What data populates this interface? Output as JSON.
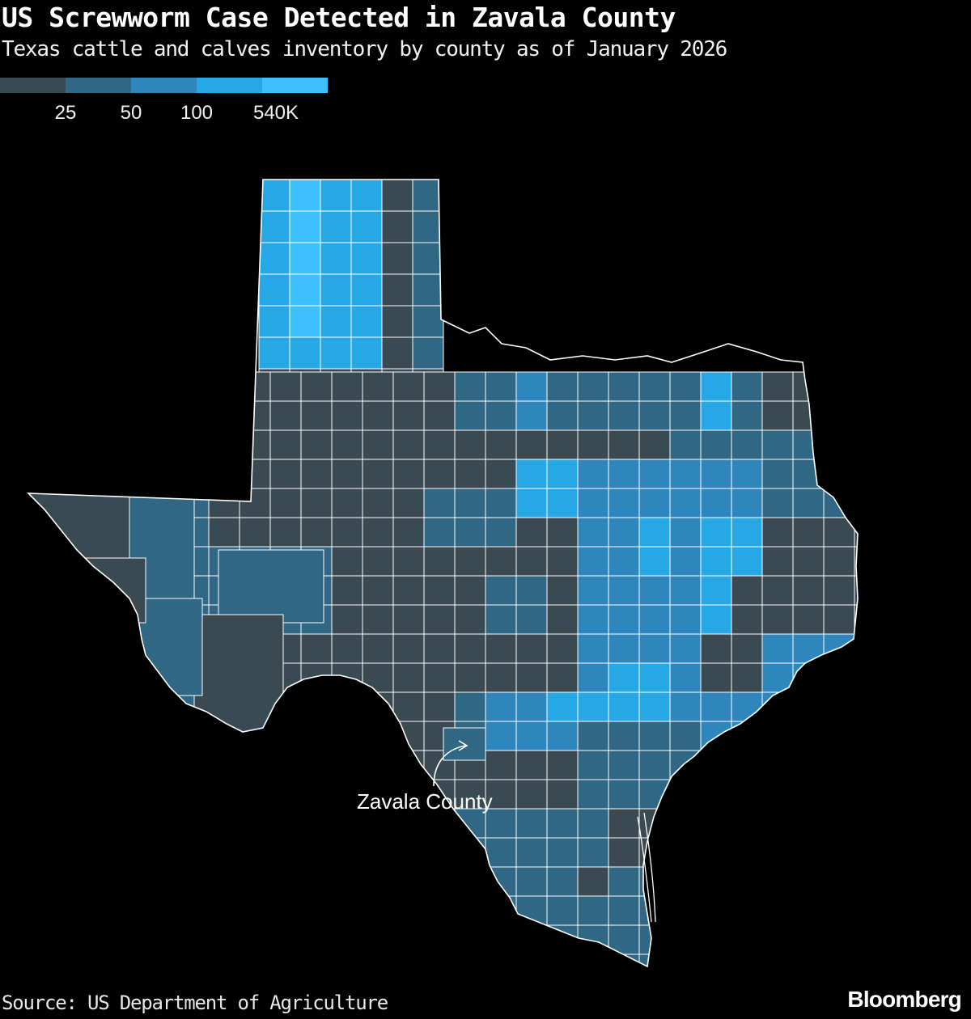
{
  "header": {
    "title": "US Screwworm Case Detected in Zavala County",
    "subtitle": "Texas cattle and calves inventory by county as of January 2026"
  },
  "legend": {
    "colors": [
      "#3a4a52",
      "#2f6784",
      "#2e86bc",
      "#26a8e6",
      "#3ec0ff"
    ],
    "ticks": [
      "25",
      "50",
      "100",
      "540K"
    ]
  },
  "map": {
    "annotation": "Zavala County",
    "highlight_county": "Zavala County",
    "border_color": "#ffffff"
  },
  "footer": {
    "source": "Source: US Department of Agriculture",
    "brand": "Bloomberg"
  }
}
